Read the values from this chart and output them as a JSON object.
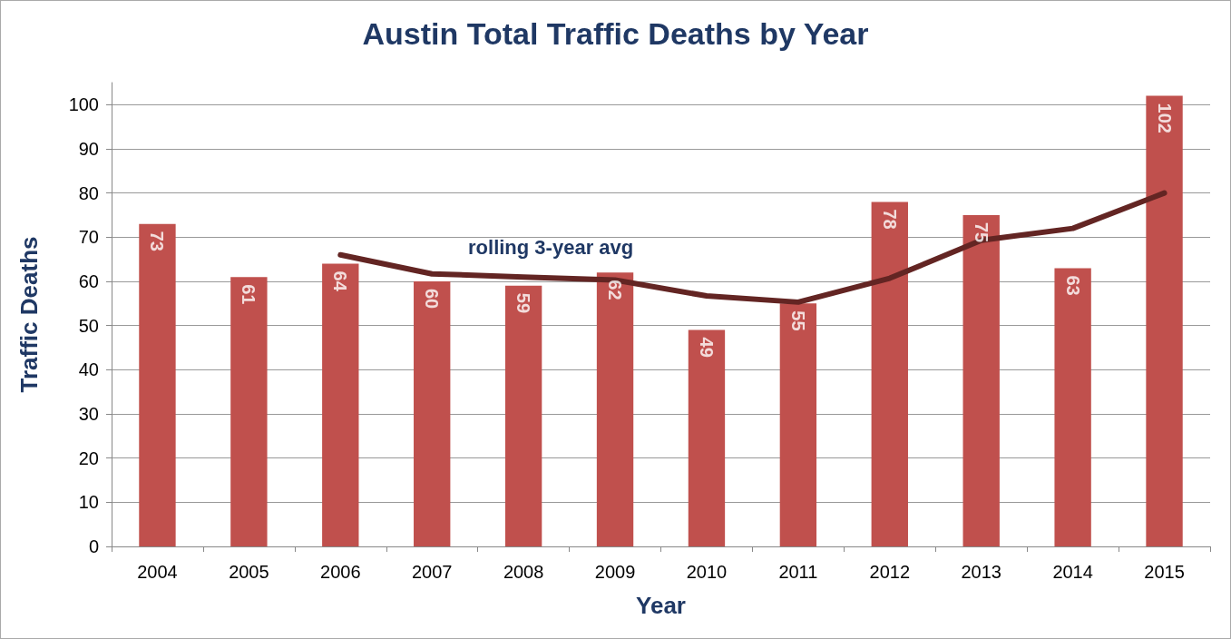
{
  "chart_data": {
    "type": "bar",
    "title": "Austin Total Traffic Deaths by Year",
    "xlabel": "Year",
    "ylabel": "Traffic Deaths",
    "categories": [
      "2004",
      "2005",
      "2006",
      "2007",
      "2008",
      "2009",
      "2010",
      "2011",
      "2012",
      "2013",
      "2014",
      "2015"
    ],
    "series": [
      {
        "color": "#c0504d",
        "values": [
          73,
          61,
          64,
          60,
          59,
          62,
          49,
          55,
          78,
          75,
          63,
          102
        ],
        "value_labels": [
          "73",
          "61",
          "64",
          "60",
          "59",
          "62",
          "49",
          "55",
          "78",
          "75",
          "63",
          "102"
        ]
      },
      {
        "type": "line",
        "name": "rolling 3-year avg",
        "color": "#632523",
        "values": [
          null,
          null,
          66,
          61.7,
          61,
          60.3,
          56.7,
          55.3,
          60.7,
          69.3,
          72,
          80
        ]
      }
    ],
    "ylim": [
      0,
      105
    ],
    "yticks": [
      0,
      10,
      20,
      30,
      40,
      50,
      60,
      70,
      80,
      90,
      100
    ],
    "grid": "y",
    "legend": false,
    "marker": "none"
  }
}
